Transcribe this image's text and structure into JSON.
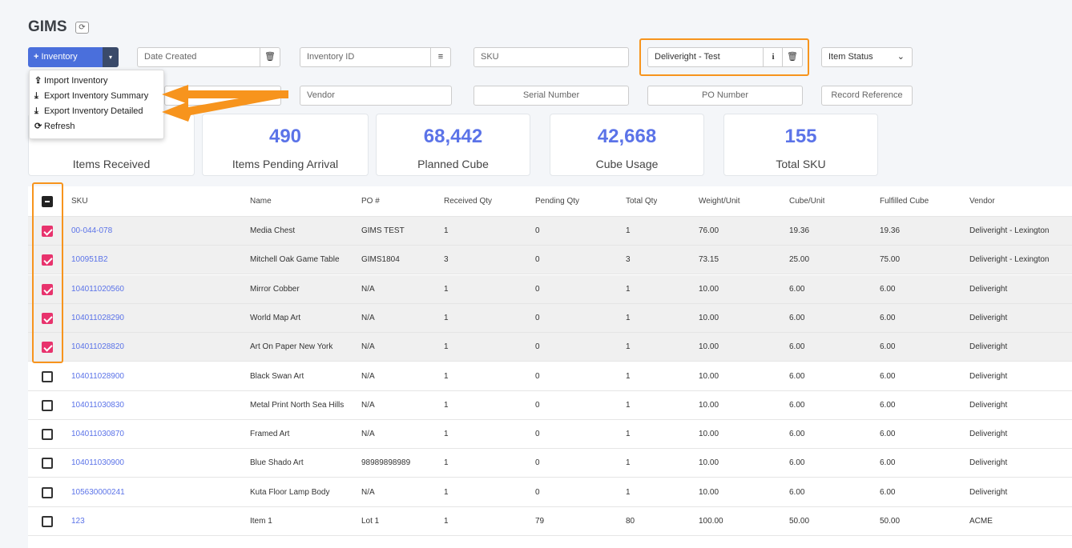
{
  "app": {
    "title": "GIMS"
  },
  "toolbar": {
    "inventory_label": "Inventory",
    "plus": "+",
    "caret": "▾"
  },
  "filters": {
    "date_created": "Date Created",
    "inventory_id": "Inventory ID",
    "sku": "SKU",
    "client": "Deliveright - Test",
    "item_status": "Item Status",
    "vendor": "Vendor",
    "serial_number": "Serial Number",
    "po_number": "PO Number",
    "record_reference": "Record Reference"
  },
  "menu": {
    "items": [
      "Import Inventory",
      "Export Inventory Summary",
      "Export Inventory Detailed",
      "Refresh"
    ]
  },
  "stats": [
    {
      "value": "",
      "label": "Items Received"
    },
    {
      "value": "490",
      "label": "Items Pending Arrival"
    },
    {
      "value": "68,442",
      "label": "Planned Cube"
    },
    {
      "value": "42,668",
      "label": "Cube Usage"
    },
    {
      "value": "155",
      "label": "Total SKU"
    }
  ],
  "table": {
    "columns": [
      "SKU",
      "Name",
      "PO #",
      "Received Qty",
      "Pending Qty",
      "Total Qty",
      "Weight/Unit",
      "Cube/Unit",
      "Fulfilled Cube",
      "Vendor"
    ],
    "rows": [
      {
        "checked": true,
        "cells": [
          "00-044-078",
          "Media Chest",
          "GIMS TEST",
          "1",
          "0",
          "1",
          "76.00",
          "19.36",
          "19.36",
          "Deliveright - Lexington"
        ]
      },
      {
        "checked": true,
        "cells": [
          "100951B2",
          "Mitchell Oak Game Table",
          "GIMS1804",
          "3",
          "0",
          "3",
          "73.15",
          "25.00",
          "75.00",
          "Deliveright - Lexington"
        ]
      },
      {
        "checked": true,
        "cells": [
          "104011020560",
          "Mirror Cobber",
          "N/A",
          "1",
          "0",
          "1",
          "10.00",
          "6.00",
          "6.00",
          "Deliveright"
        ]
      },
      {
        "checked": true,
        "cells": [
          "104011028290",
          "World Map Art",
          "N/A",
          "1",
          "0",
          "1",
          "10.00",
          "6.00",
          "6.00",
          "Deliveright"
        ]
      },
      {
        "checked": true,
        "cells": [
          "104011028820",
          "Art On Paper New York",
          "N/A",
          "1",
          "0",
          "1",
          "10.00",
          "6.00",
          "6.00",
          "Deliveright"
        ]
      },
      {
        "checked": false,
        "cells": [
          "104011028900",
          "Black Swan Art",
          "N/A",
          "1",
          "0",
          "1",
          "10.00",
          "6.00",
          "6.00",
          "Deliveright"
        ]
      },
      {
        "checked": false,
        "cells": [
          "104011030830",
          "Metal Print North Sea Hills",
          "N/A",
          "1",
          "0",
          "1",
          "10.00",
          "6.00",
          "6.00",
          "Deliveright"
        ]
      },
      {
        "checked": false,
        "cells": [
          "104011030870",
          "Framed Art",
          "N/A",
          "1",
          "0",
          "1",
          "10.00",
          "6.00",
          "6.00",
          "Deliveright"
        ]
      },
      {
        "checked": false,
        "cells": [
          "104011030900",
          "Blue Shado Art",
          "98989898989",
          "1",
          "0",
          "1",
          "10.00",
          "6.00",
          "6.00",
          "Deliveright"
        ]
      },
      {
        "checked": false,
        "cells": [
          "105630000241",
          "Kuta Floor Lamp Body",
          "N/A",
          "1",
          "0",
          "1",
          "10.00",
          "6.00",
          "6.00",
          "Deliveright"
        ]
      },
      {
        "checked": false,
        "cells": [
          "123",
          "Item 1",
          "Lot 1",
          "1",
          "79",
          "80",
          "100.00",
          "50.00",
          "50.00",
          "ACME"
        ]
      }
    ]
  },
  "colors": {
    "accent": "#5b73e8",
    "highlight": "#f7941d",
    "checkbox": "#e8336d",
    "button": "#4a6fdc"
  }
}
